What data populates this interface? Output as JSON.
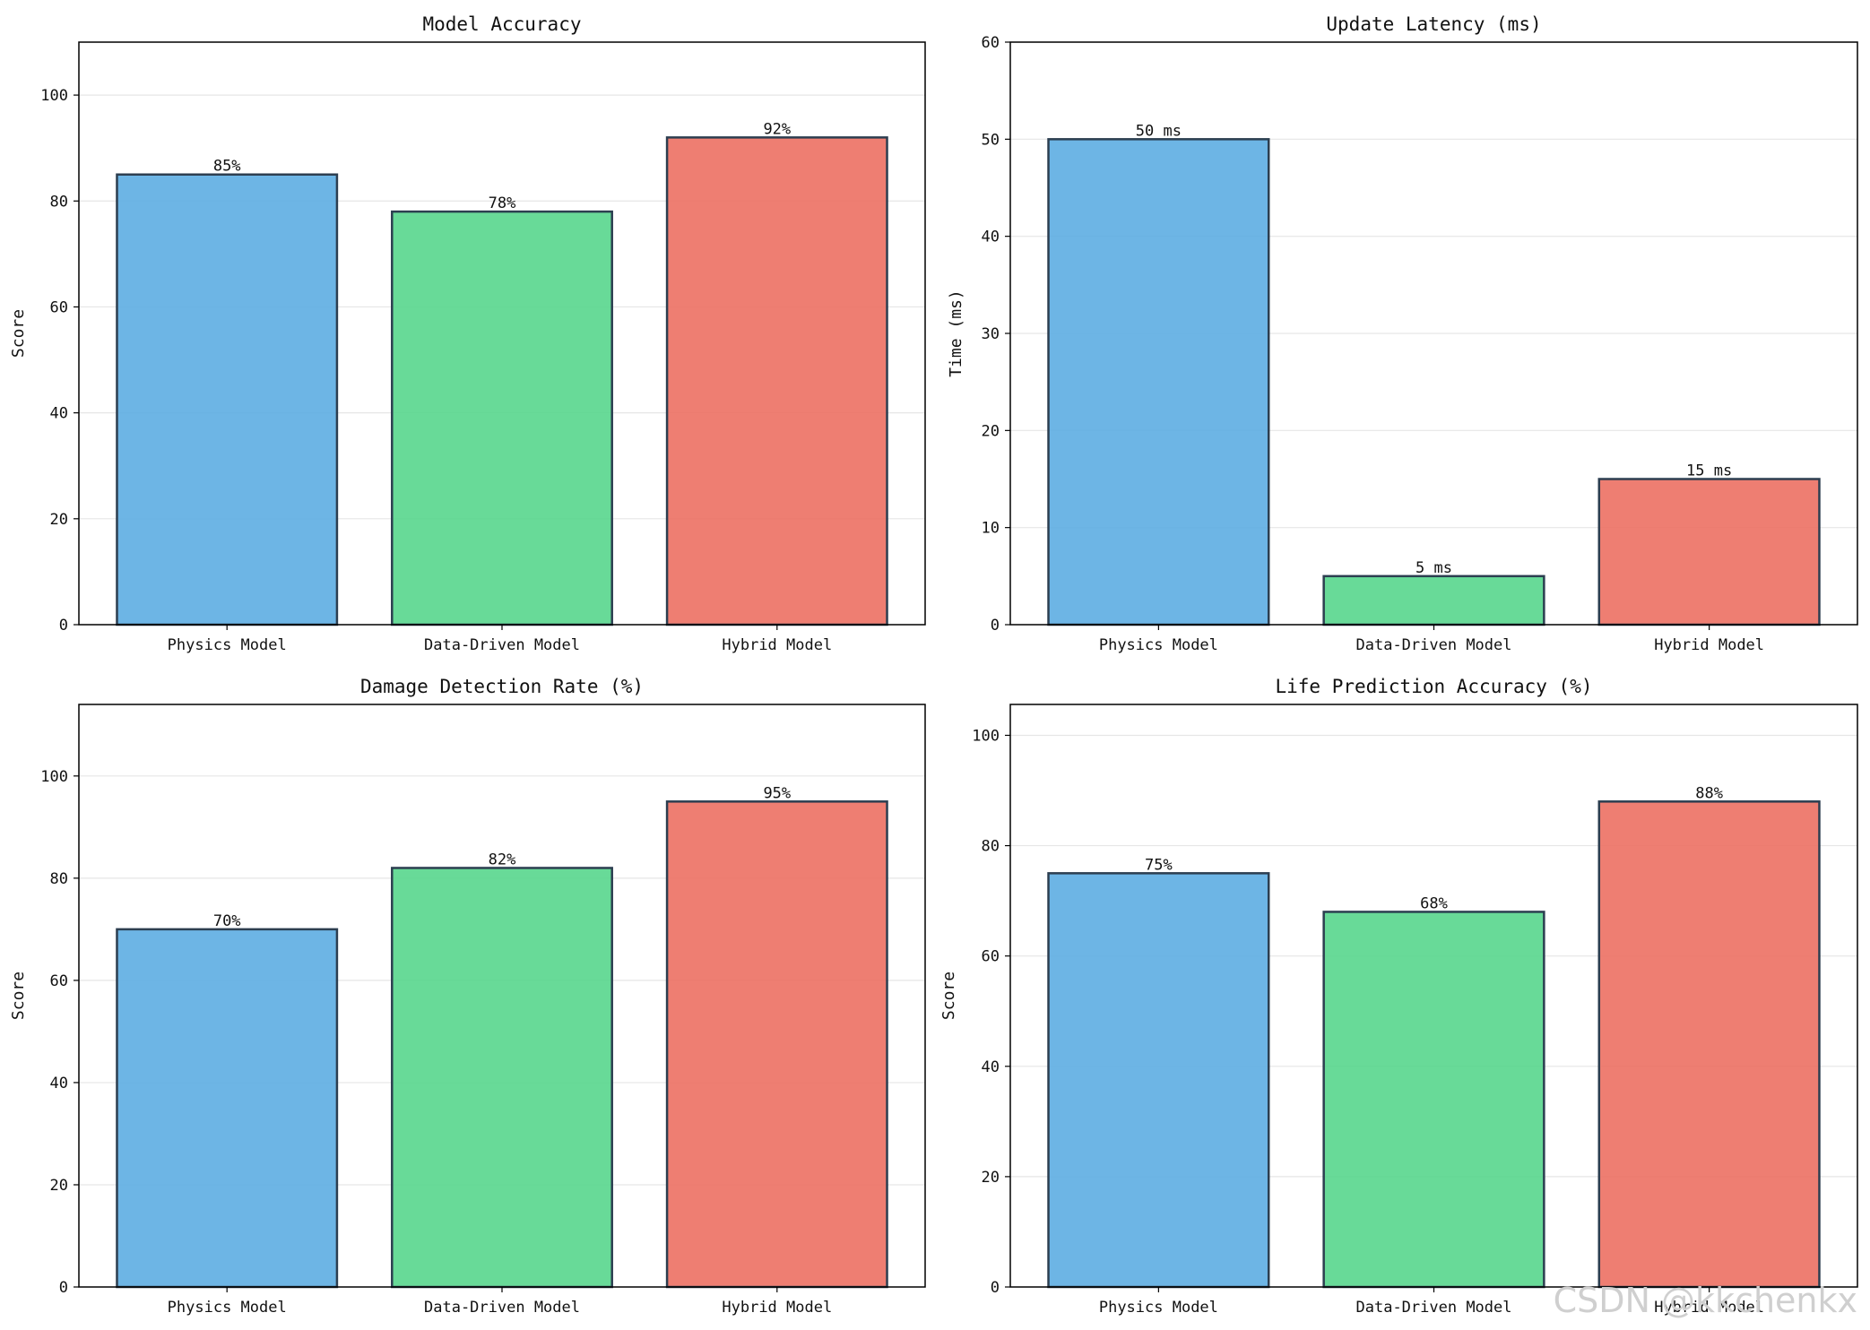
{
  "colors": {
    "series": [
      "#5DADE2",
      "#58D68D",
      "#EC7063"
    ],
    "bar_edge": "#2C3E50",
    "grid": "#e6e6e6",
    "axis": "#000000"
  },
  "watermark": "CSDN @kkchenkx",
  "chart_data": [
    {
      "type": "bar",
      "title": "Model Accuracy",
      "categories": [
        "Physics Model",
        "Data-Driven Model",
        "Hybrid Model"
      ],
      "values": [
        85,
        78,
        92
      ],
      "value_labels": [
        "85%",
        "78%",
        "92%"
      ],
      "xlabel": "",
      "ylabel": "Score",
      "ylim": [
        0,
        110
      ],
      "yticks": [
        0,
        20,
        40,
        60,
        80,
        100
      ],
      "grid": "y"
    },
    {
      "type": "bar",
      "title": "Update Latency (ms)",
      "categories": [
        "Physics Model",
        "Data-Driven Model",
        "Hybrid Model"
      ],
      "values": [
        50,
        5,
        15
      ],
      "value_labels": [
        "50 ms",
        "5 ms",
        "15 ms"
      ],
      "xlabel": "",
      "ylabel": "Time (ms)",
      "ylim": [
        0,
        60
      ],
      "yticks": [
        0,
        10,
        20,
        30,
        40,
        50,
        60
      ],
      "grid": "y"
    },
    {
      "type": "bar",
      "title": "Damage Detection Rate (%)",
      "categories": [
        "Physics Model",
        "Data-Driven Model",
        "Hybrid Model"
      ],
      "values": [
        70,
        82,
        95
      ],
      "value_labels": [
        "70%",
        "82%",
        "95%"
      ],
      "xlabel": "",
      "ylabel": "Score",
      "ylim": [
        0,
        114
      ],
      "yticks": [
        0,
        20,
        40,
        60,
        80,
        100
      ],
      "grid": "y"
    },
    {
      "type": "bar",
      "title": "Life Prediction Accuracy (%)",
      "categories": [
        "Physics Model",
        "Data-Driven Model",
        "Hybrid Model"
      ],
      "values": [
        75,
        68,
        88
      ],
      "value_labels": [
        "75%",
        "68%",
        "88%"
      ],
      "xlabel": "",
      "ylabel": "Score",
      "ylim": [
        0,
        105.6
      ],
      "yticks": [
        0,
        20,
        40,
        60,
        80,
        100
      ],
      "grid": "y"
    }
  ]
}
